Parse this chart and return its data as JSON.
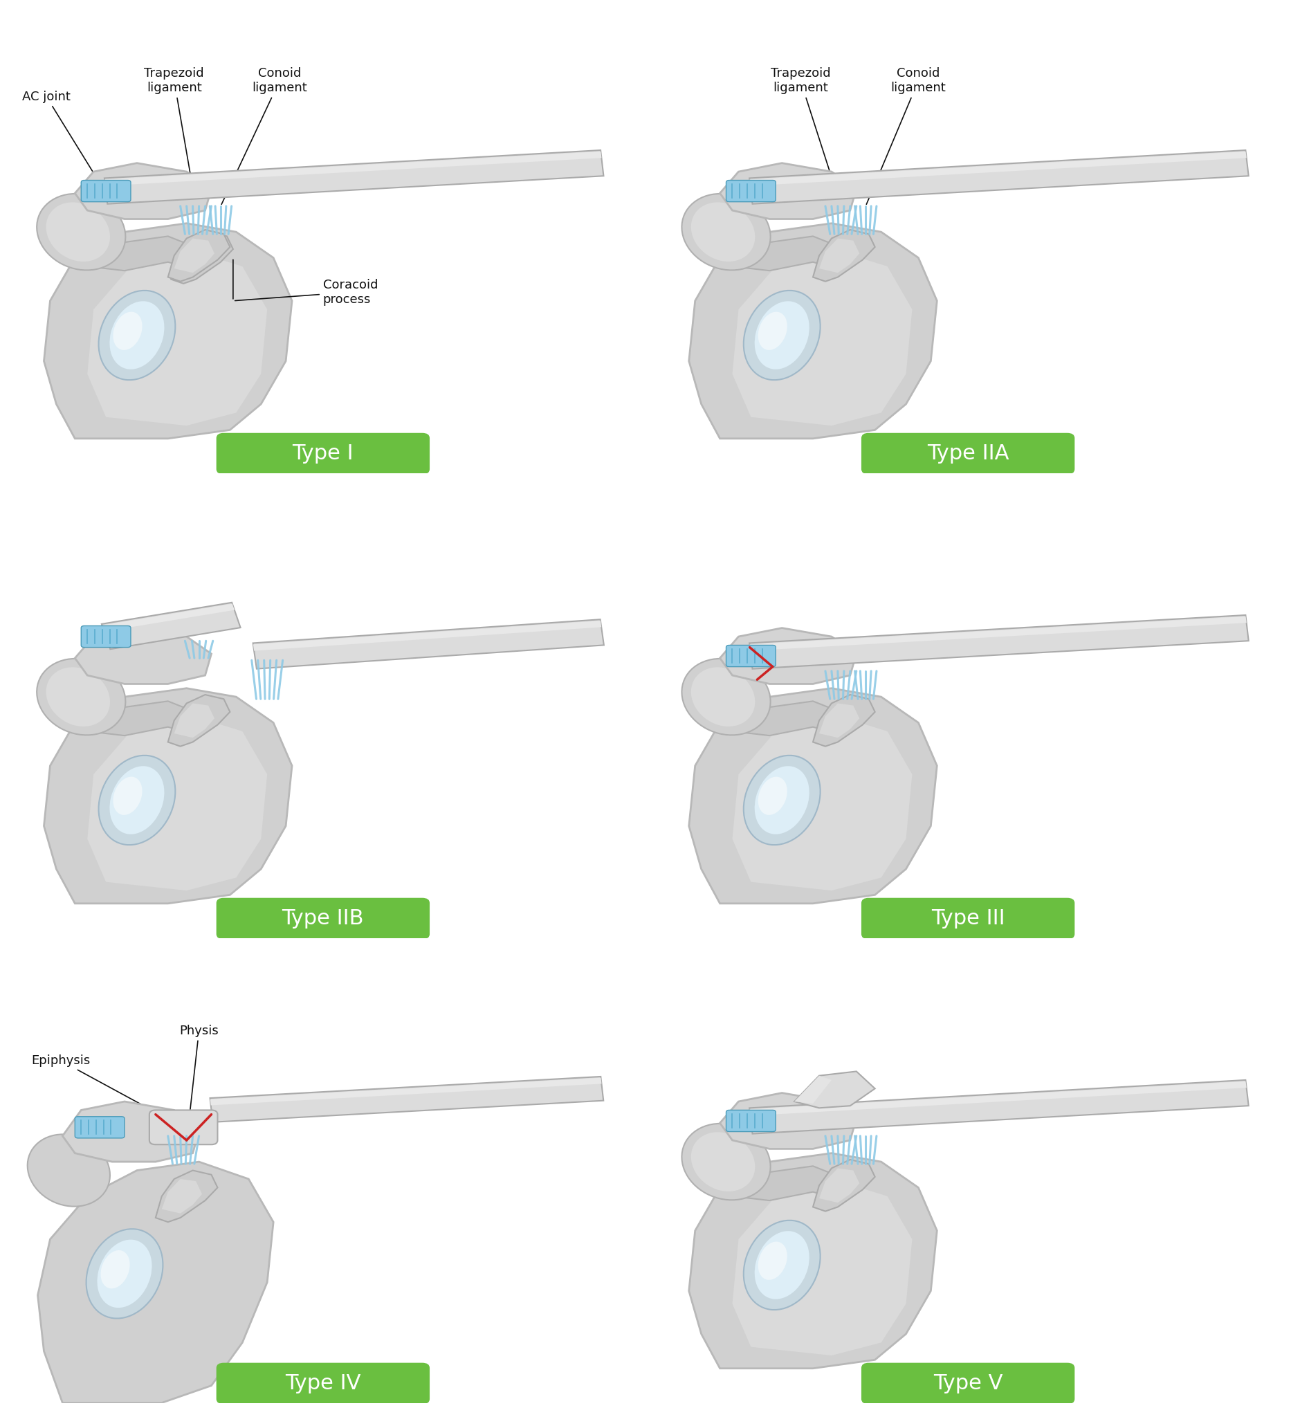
{
  "background_color": "#ffffff",
  "green_color": "#6abf40",
  "bone_light": "#e0e0e0",
  "bone_mid": "#cccccc",
  "bone_dark": "#b0b0b0",
  "bone_darker": "#999999",
  "scapula_fill": "#d8d8d8",
  "scapula_body": "#c8c8c8",
  "glenoid_fill": "#dde8ee",
  "glenoid_inner": "#eaf2f7",
  "blue_lig": "#8ecae6",
  "blue_lig2": "#5aadce",
  "blue_dark": "#4a9ab8",
  "red_fracture": "#cc2222",
  "clavicle_fill": "#dcdcdc",
  "clavicle_edge": "#aaaaaa",
  "badge_green": "#6abf40",
  "badge_text": "#ffffff",
  "label_text": "#111111",
  "types": [
    "Type I",
    "Type IIA",
    "Type IIB",
    "Type III",
    "Type IV",
    "Type V"
  ]
}
